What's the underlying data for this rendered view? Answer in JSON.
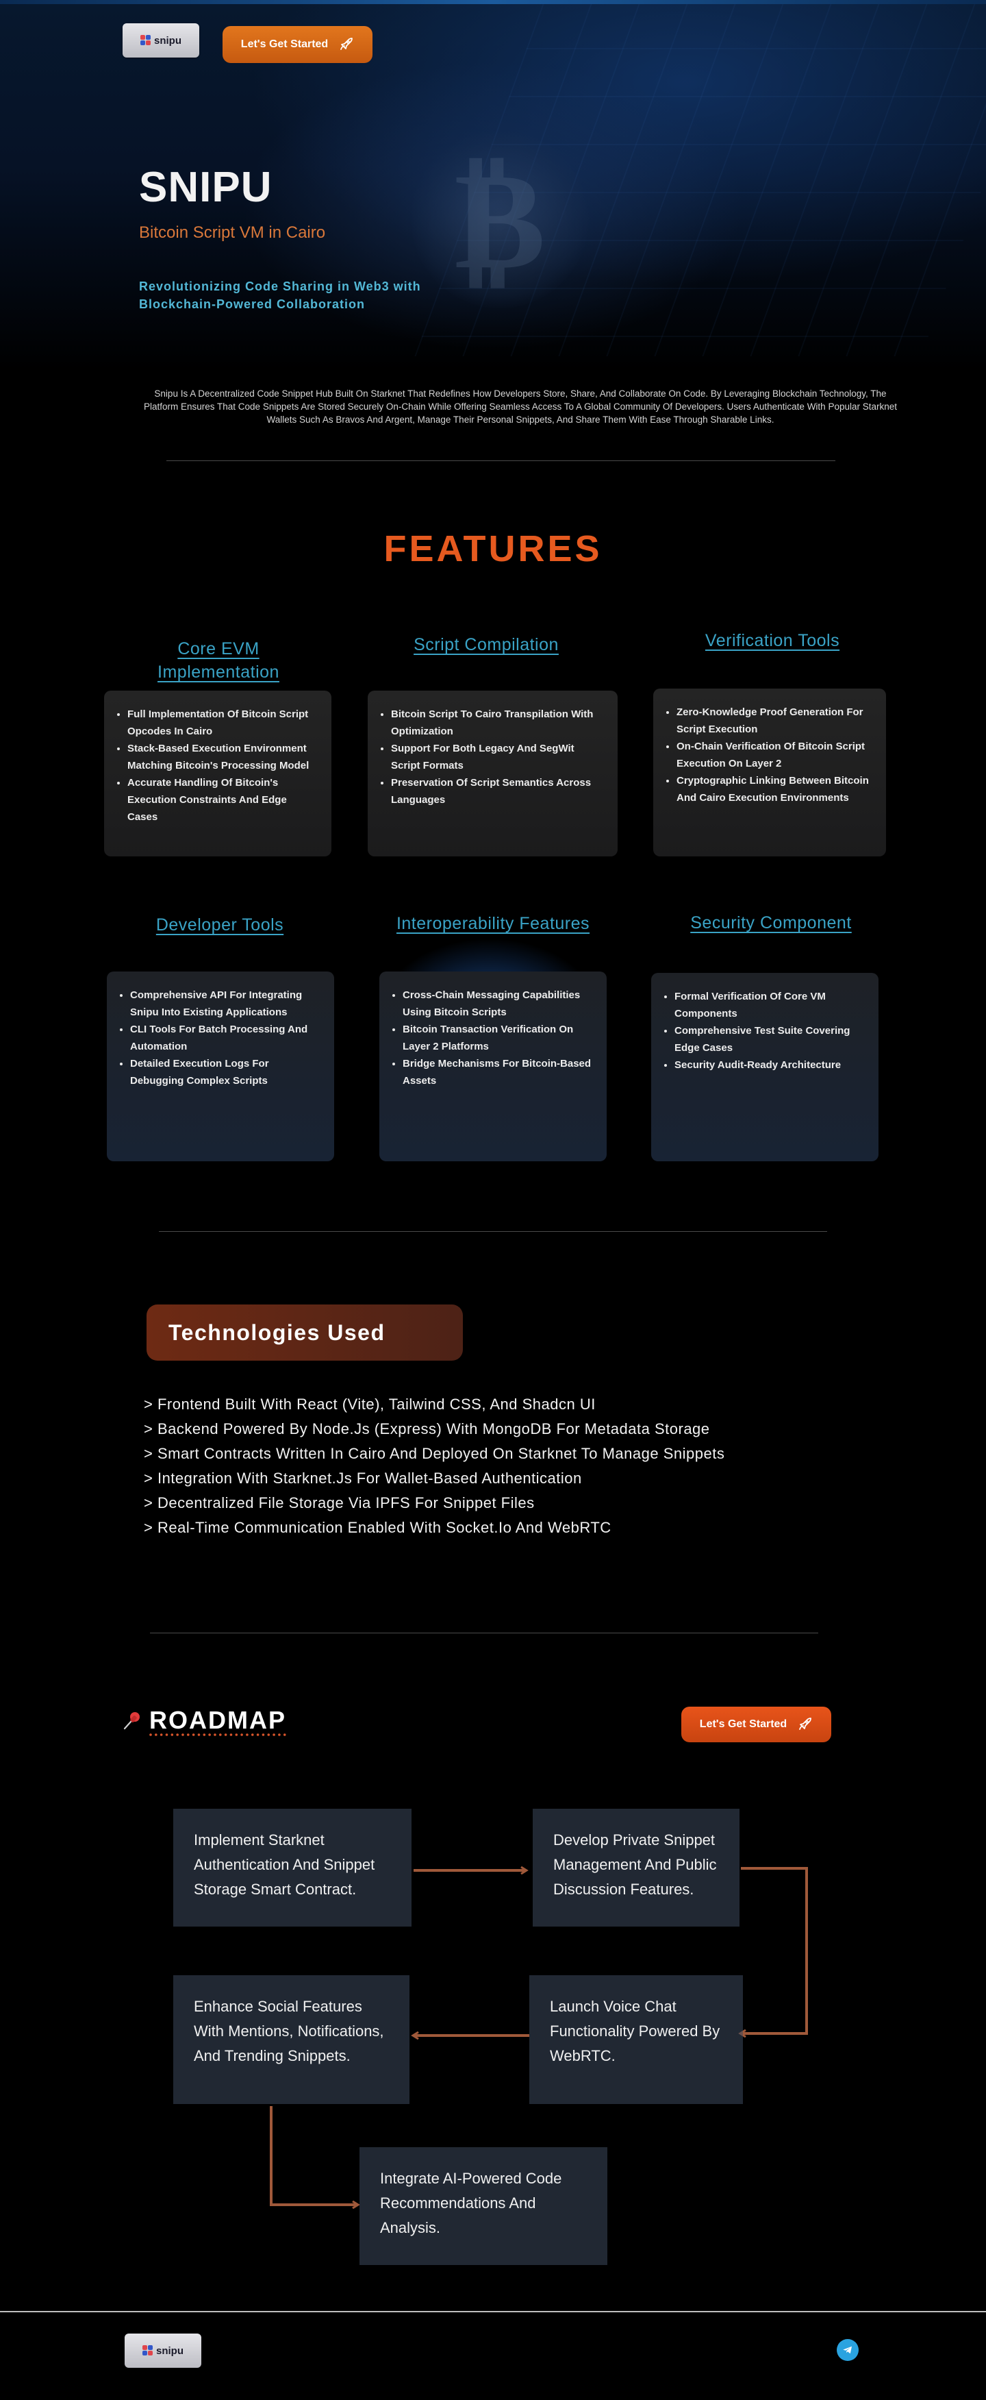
{
  "header": {
    "logo_text": "snipu",
    "cta_label": "Let's Get Started"
  },
  "hero": {
    "title": "SNIPU",
    "subtitle": "Bitcoin Script VM in Cairo",
    "tagline": "Revolutionizing Code Sharing in Web3 with Blockchain-Powered Collaboration",
    "intro": "Snipu Is A Decentralized Code Snippet Hub Built On Starknet That Redefines How Developers Store, Share, And Collaborate On Code. By Leveraging Blockchain Technology, The Platform Ensures That Code Snippets Are Stored Securely On-Chain While Offering Seamless Access To A Global Community Of Developers. Users Authenticate With Popular Starknet Wallets Such As Bravos And Argent, Manage Their Personal Snippets, And Share Them With Ease Through Sharable Links."
  },
  "features": {
    "title": "FEATURES",
    "items": [
      {
        "heading": "Core EVM Implementation",
        "points": [
          "Full Implementation Of Bitcoin Script Opcodes In Cairo",
          "Stack-Based Execution Environment Matching Bitcoin's Processing Model",
          "Accurate Handling Of Bitcoin's Execution Constraints And Edge Cases"
        ]
      },
      {
        "heading": "Script Compilation",
        "points": [
          "Bitcoin Script To Cairo Transpilation With Optimization",
          "Support For Both Legacy And SegWit Script Formats",
          "Preservation Of Script Semantics Across Languages"
        ]
      },
      {
        "heading": "Verification Tools",
        "points": [
          "Zero-Knowledge Proof Generation For Script Execution",
          "On-Chain Verification Of Bitcoin Script Execution On Layer 2",
          "Cryptographic Linking Between Bitcoin And Cairo Execution Environments"
        ]
      },
      {
        "heading": "Developer Tools",
        "points": [
          "Comprehensive API For Integrating Snipu Into Existing Applications",
          "CLI Tools For Batch Processing And Automation",
          "Detailed Execution Logs For Debugging Complex Scripts"
        ]
      },
      {
        "heading": "Interoperability Features",
        "points": [
          "Cross-Chain Messaging Capabilities Using Bitcoin Scripts",
          "Bitcoin Transaction Verification On Layer 2 Platforms",
          "Bridge Mechanisms For Bitcoin-Based Assets"
        ]
      },
      {
        "heading": "Security Component",
        "points": [
          "Formal Verification Of Core VM Components",
          "Comprehensive Test Suite Covering Edge Cases",
          "Security Audit-Ready Architecture"
        ]
      }
    ]
  },
  "technologies": {
    "title": "Technologies Used",
    "items": [
      "> Frontend Built With React (Vite), Tailwind CSS, And Shadcn UI",
      "> Backend Powered By Node.Js (Express) With MongoDB For Metadata Storage",
      "> Smart Contracts Written In Cairo And Deployed On Starknet To Manage Snippets",
      "> Integration With Starknet.Js For Wallet-Based Authentication",
      "> Decentralized File Storage Via IPFS For Snippet Files",
      "> Real-Time Communication Enabled With Socket.Io And WebRTC"
    ]
  },
  "roadmap": {
    "title": "ROADMAP",
    "cta_label": "Let's Get Started",
    "steps": [
      "Implement Starknet Authentication And Snippet Storage Smart Contract.",
      "Develop Private Snippet Management And Public Discussion Features.",
      "Launch Voice Chat Functionality Powered By WebRTC.",
      "Enhance Social Features With Mentions, Notifications, And Trending Snippets.",
      "Integrate AI-Powered Code Recommendations And Analysis."
    ]
  },
  "footer": {
    "logo_text": "snipu"
  },
  "colors": {
    "accent_orange": "#e65a1f",
    "feature_heading": "#3aa3c6",
    "telegram": "#2aa3e0"
  },
  "icons": [
    "rocket-icon",
    "pin-icon",
    "telegram-icon"
  ]
}
